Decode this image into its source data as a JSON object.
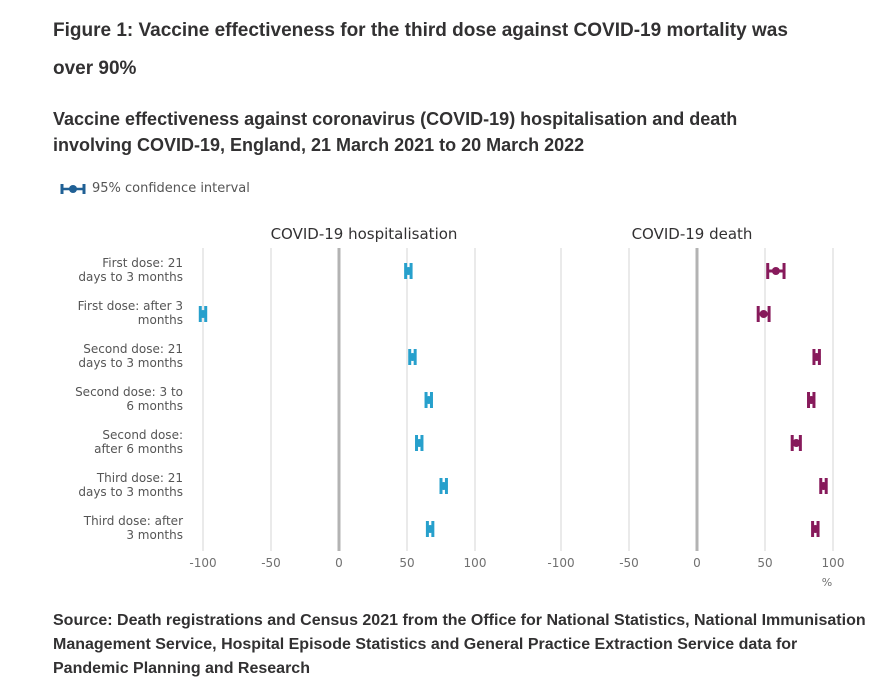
{
  "figure_title": "Figure 1: Vaccine effectiveness for the third dose against COVID-19 mortality was over 90%",
  "legend": {
    "icon": "confidence-interval-icon",
    "label": "95% confidence interval",
    "color": "#206095"
  },
  "source": "Source: Death registrations and Census 2021 from the Office for National Statistics, National Immunisation Management Service, Hospital Episode Statistics and General Practice Extraction Service data for Pandemic Planning and Research",
  "chart_data": {
    "type": "scatter",
    "subtype": "dot-plot-with-confidence-intervals",
    "title": "Vaccine effectiveness against coronavirus (COVID-19) hospitalisation and death involving COVID-19, England, 21 March 2021 to 20 March 2022",
    "categories": [
      [
        "First dose: 21",
        "days to 3 months"
      ],
      [
        "First dose: after 3",
        "months"
      ],
      [
        "Second dose: 21",
        "days to 3 months"
      ],
      [
        "Second dose: 3 to",
        "6 months"
      ],
      [
        "Second dose:",
        "after 6 months"
      ],
      [
        "Third dose: 21",
        "days to 3 months"
      ],
      [
        "Third dose: after",
        "3 months"
      ]
    ],
    "xlabel": "%",
    "xlim": [
      -100,
      100
    ],
    "xticks": [
      -100,
      -50,
      0,
      50,
      100
    ],
    "grid": true,
    "legend_position": "top-left",
    "series": [
      {
        "name": "COVID-19 hospitalisation",
        "color": "#27a0cc",
        "values": [
          51,
          -100,
          54,
          66,
          59,
          77,
          67
        ],
        "ci_lower": [
          49,
          -102,
          52,
          64,
          57,
          75,
          65
        ],
        "ci_upper": [
          53,
          -98,
          56,
          68,
          61,
          79,
          69
        ]
      },
      {
        "name": "COVID-19 death",
        "color": "#871a5b",
        "values": [
          58,
          49,
          88,
          84,
          73,
          93,
          87
        ],
        "ci_lower": [
          52,
          45,
          86,
          82,
          70,
          91,
          85
        ],
        "ci_upper": [
          64,
          53,
          90,
          86,
          76,
          95,
          89
        ]
      }
    ]
  }
}
